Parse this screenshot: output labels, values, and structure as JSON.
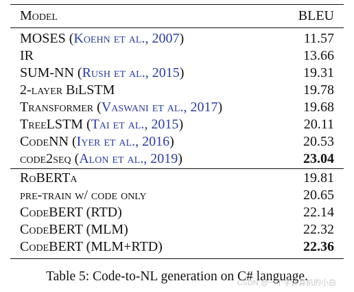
{
  "header": {
    "model": "Model",
    "metric": "BLEU"
  },
  "groups": [
    {
      "rows": [
        {
          "name": "MOSES",
          "cite": "Koehn et al., 2007",
          "score": "11.57",
          "bold": false
        },
        {
          "name": "IR",
          "cite": "",
          "score": "13.66",
          "bold": false
        },
        {
          "name": "SUM-NN",
          "cite": "Rush et al., 2015",
          "score": "19.31",
          "bold": false
        },
        {
          "name": "2-layer BiLSTM",
          "cite": "",
          "score": "19.78",
          "bold": false
        },
        {
          "name": "Transformer",
          "cite": "Vaswani et al., 2017",
          "score": "19.68",
          "bold": false
        },
        {
          "name": "TreeLSTM",
          "cite": "Tai et al., 2015",
          "score": "20.11",
          "bold": false
        },
        {
          "name": "CodeNN",
          "cite": "Iyer et al., 2016",
          "score": "20.53",
          "bold": false
        },
        {
          "name": "code2seq",
          "cite": "Alon et al., 2019",
          "score": "23.04",
          "bold": true
        }
      ]
    },
    {
      "rows": [
        {
          "name": "RoBERTa",
          "cite": "",
          "score": "19.81",
          "bold": false
        },
        {
          "name": "pre-train w/ code only",
          "cite": "",
          "score": "20.65",
          "bold": false
        },
        {
          "name": "CodeBERT (RTD)",
          "cite": "",
          "score": "22.14",
          "bold": false
        },
        {
          "name": "CodeBERT (MLM)",
          "cite": "",
          "score": "22.32",
          "bold": false
        },
        {
          "name": "CodeBERT (MLM+RTD)",
          "cite": "",
          "score": "22.36",
          "bold": true
        }
      ]
    }
  ],
  "caption": "Table 5:  Code-to-NL generation on C# language.",
  "watermark": "CSDN @一个学计算机的小白"
}
